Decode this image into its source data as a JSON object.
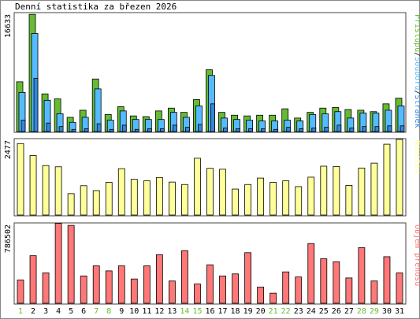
{
  "title": "Denní statistika za březen 2026",
  "colors": {
    "hits": "#66bb33",
    "files": "#55bbff",
    "pages": "#3388dd",
    "visits": "#ffff99",
    "traffic": "#ff7777",
    "weekend": "#66bb33",
    "weekday": "#000000"
  },
  "chart_data": [
    {
      "type": "bar",
      "categories": [
        "1",
        "2",
        "3",
        "4",
        "5",
        "6",
        "7",
        "8",
        "9",
        "10",
        "11",
        "12",
        "13",
        "14",
        "15",
        "16",
        "17",
        "18",
        "19",
        "20",
        "21",
        "22",
        "23",
        "24",
        "25",
        "26",
        "27",
        "28",
        "29",
        "30",
        "31"
      ],
      "weekend_days": [
        "1",
        "7",
        "8",
        "14",
        "15",
        "21",
        "22",
        "28",
        "29"
      ],
      "ymax_label": "16633",
      "ylim": [
        0,
        16633
      ],
      "side_label": {
        "parts": [
          {
            "text": "Přístupů",
            "color": "#66bb33"
          },
          {
            "text": "/",
            "color": "#000000"
          },
          {
            "text": "Souborů",
            "color": "#55bbff"
          },
          {
            "text": "/",
            "color": "#000000"
          },
          {
            "text": "Stránek",
            "color": "#3388dd"
          }
        ]
      },
      "series": [
        {
          "name": "Přístupů",
          "values": [
            7000,
            16500,
            5300,
            4600,
            2000,
            3000,
            7400,
            2400,
            3500,
            2200,
            2100,
            2900,
            3300,
            2700,
            4500,
            8700,
            2700,
            2300,
            2200,
            2300,
            2300,
            3200,
            1900,
            2700,
            3300,
            3400,
            3100,
            3000,
            2800,
            3900,
            4700
          ]
        },
        {
          "name": "Souborů",
          "values": [
            5500,
            13800,
            4400,
            2500,
            1300,
            2000,
            6000,
            1600,
            2900,
            1700,
            1700,
            1700,
            2700,
            2000,
            3600,
            7900,
            1900,
            1700,
            1600,
            1500,
            1500,
            1600,
            1500,
            2400,
            2500,
            2800,
            1900,
            2600,
            2600,
            3000,
            3600
          ]
        },
        {
          "name": "Stránek",
          "values": [
            1600,
            7500,
            1200,
            700,
            300,
            400,
            1100,
            300,
            900,
            300,
            400,
            400,
            900,
            600,
            1000,
            3900,
            500,
            400,
            400,
            400,
            300,
            600,
            400,
            500,
            600,
            900,
            500,
            700,
            700,
            800,
            800
          ]
        }
      ]
    },
    {
      "type": "bar",
      "categories": [
        "1",
        "2",
        "3",
        "4",
        "5",
        "6",
        "7",
        "8",
        "9",
        "10",
        "11",
        "12",
        "13",
        "14",
        "15",
        "16",
        "17",
        "18",
        "19",
        "20",
        "21",
        "22",
        "23",
        "24",
        "25",
        "26",
        "27",
        "28",
        "29",
        "30",
        "31"
      ],
      "ymax_label": "2477",
      "ylim": [
        0,
        2477
      ],
      "side_label": {
        "parts": [
          {
            "text": "Návštěv",
            "color": "#ffff99"
          }
        ]
      },
      "series": [
        {
          "name": "Návštěv",
          "values": [
            2340,
            1950,
            1620,
            1580,
            700,
            960,
            800,
            1070,
            1520,
            1170,
            1120,
            1230,
            1080,
            1000,
            1860,
            1530,
            1500,
            850,
            1000,
            1210,
            1070,
            1120,
            930,
            1240,
            1600,
            1590,
            970,
            1540,
            1700,
            2320,
            2480
          ]
        }
      ]
    },
    {
      "type": "bar",
      "categories": [
        "1",
        "2",
        "3",
        "4",
        "5",
        "6",
        "7",
        "8",
        "9",
        "10",
        "11",
        "12",
        "13",
        "14",
        "15",
        "16",
        "17",
        "18",
        "19",
        "20",
        "21",
        "22",
        "23",
        "24",
        "25",
        "26",
        "27",
        "28",
        "29",
        "30",
        "31"
      ],
      "ymax_label": "786502",
      "ylim": [
        0,
        786502
      ],
      "side_label": {
        "parts": [
          {
            "text": "Objem přenosu",
            "color": "#ff7777"
          }
        ]
      },
      "series": [
        {
          "name": "Objem přenosu",
          "values": [
            230000,
            470000,
            300000,
            790000,
            770000,
            270000,
            370000,
            320000,
            370000,
            240000,
            370000,
            480000,
            220000,
            520000,
            190000,
            380000,
            270000,
            290000,
            500000,
            160000,
            100000,
            310000,
            260000,
            590000,
            440000,
            410000,
            250000,
            550000,
            220000,
            460000,
            300000
          ]
        }
      ]
    }
  ]
}
